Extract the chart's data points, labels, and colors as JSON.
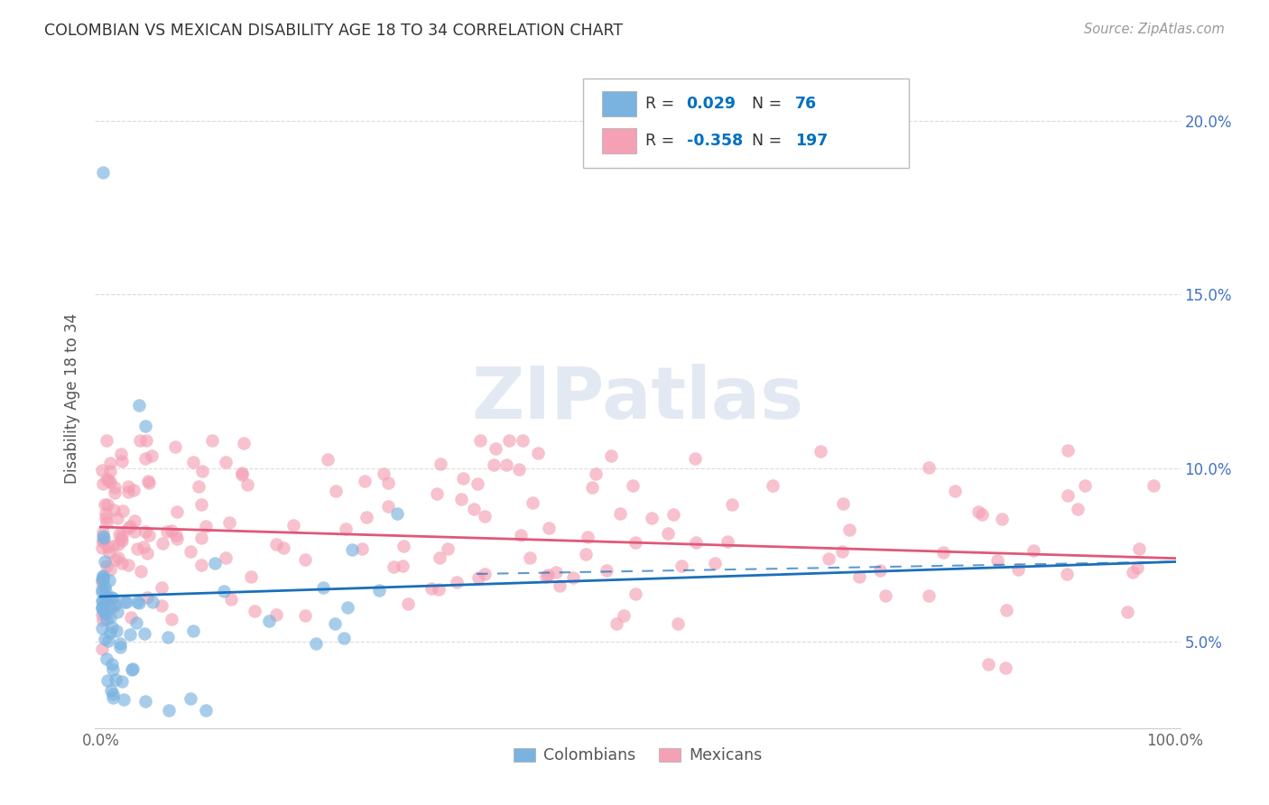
{
  "title": "COLOMBIAN VS MEXICAN DISABILITY AGE 18 TO 34 CORRELATION CHART",
  "source": "Source: ZipAtlas.com",
  "ylabel": "Disability Age 18 to 34",
  "background_color": "#ffffff",
  "colombian_color": "#7ab3e0",
  "mexican_color": "#f4a0b5",
  "colombian_line_color": "#1a6fba",
  "mexican_line_color": "#e05878",
  "grid_color": "#cccccc",
  "legend_color_blue": "#0070c0",
  "legend_color_black": "#333333",
  "ytick_positions": [
    0.05,
    0.1,
    0.15,
    0.2
  ],
  "ytick_labels": [
    "5.0%",
    "10.0%",
    "15.0%",
    "20.0%"
  ],
  "xlim": [
    -0.005,
    1.005
  ],
  "ylim": [
    0.025,
    0.215
  ],
  "col_line_x": [
    0.0,
    1.0
  ],
  "col_line_y": [
    0.063,
    0.073
  ],
  "mex_line_x": [
    0.0,
    1.0
  ],
  "mex_line_y": [
    0.083,
    0.074
  ],
  "watermark_text": "ZIPatlas",
  "watermark_color": "#cdd8e8",
  "col_seed": 42,
  "mex_seed": 99
}
